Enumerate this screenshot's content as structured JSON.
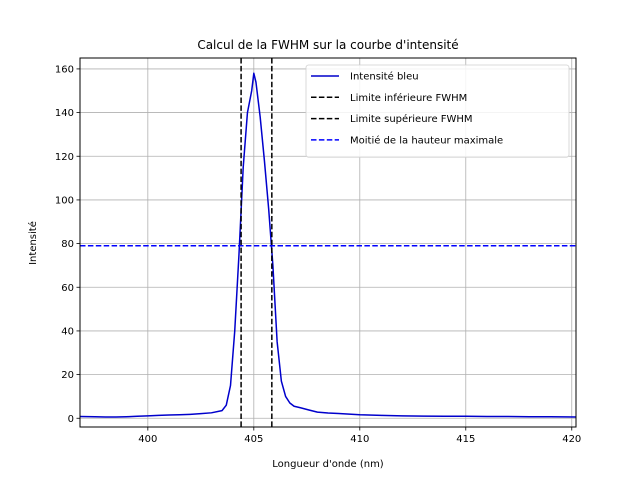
{
  "chart_data": {
    "type": "line",
    "title": "Calcul de la FWHM sur la courbe d'intensité",
    "xlabel": "Longueur d'onde (nm)",
    "ylabel": "Intensité",
    "xlim": [
      396.8,
      420.2
    ],
    "ylim": [
      -4,
      165
    ],
    "xticks": [
      400,
      405,
      410,
      415,
      420
    ],
    "yticks": [
      0,
      20,
      40,
      60,
      80,
      100,
      120,
      140,
      160
    ],
    "grid": true,
    "legend_position": "top-right",
    "series": [
      {
        "name": "Intensité bleu",
        "color": "#0000cc",
        "style": "solid",
        "x": [
          396.8,
          397.5,
          398.0,
          398.5,
          399.0,
          399.5,
          400.0,
          400.5,
          401.0,
          401.5,
          402.0,
          402.5,
          403.0,
          403.5,
          403.7,
          403.9,
          404.1,
          404.3,
          404.5,
          404.7,
          404.9,
          405.0,
          405.1,
          405.3,
          405.5,
          405.7,
          405.9,
          406.1,
          406.3,
          406.5,
          406.7,
          406.9,
          407.2,
          407.6,
          408.0,
          408.5,
          409.0,
          409.5,
          410.0,
          411.0,
          412.0,
          413.0,
          414.0,
          415.0,
          416.0,
          417.0,
          418.0,
          419.0,
          420.2
        ],
        "y": [
          0.8,
          0.7,
          0.6,
          0.6,
          0.7,
          0.9,
          1.1,
          1.3,
          1.5,
          1.6,
          1.8,
          2.1,
          2.5,
          3.5,
          6.0,
          15.0,
          40.0,
          75.0,
          115.0,
          140.0,
          150.0,
          158.0,
          154.0,
          138.0,
          118.0,
          96.0,
          70.0,
          35.0,
          17.0,
          10.0,
          7.0,
          5.5,
          4.8,
          3.8,
          2.8,
          2.4,
          2.2,
          1.9,
          1.6,
          1.3,
          1.1,
          1.0,
          0.9,
          0.9,
          0.8,
          0.8,
          0.7,
          0.7,
          0.6
        ]
      },
      {
        "name": "Limite inférieure FWHM",
        "color": "#000000",
        "style": "dashed",
        "orientation": "vertical",
        "x": 404.4
      },
      {
        "name": "Limite supérieure FWHM",
        "color": "#000000",
        "style": "dashed",
        "orientation": "vertical",
        "x": 405.85
      },
      {
        "name": "Moitié de la hauteur maximale",
        "color": "#0000ff",
        "style": "dashed",
        "orientation": "horizontal",
        "y": 79
      }
    ]
  }
}
